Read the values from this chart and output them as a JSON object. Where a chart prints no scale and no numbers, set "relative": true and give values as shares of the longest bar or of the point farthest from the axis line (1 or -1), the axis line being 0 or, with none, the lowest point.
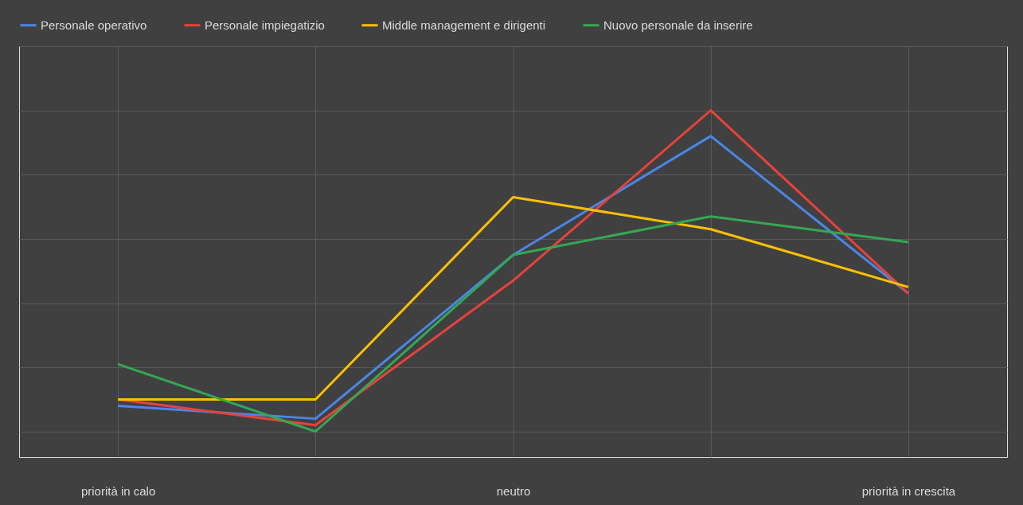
{
  "chart_data": {
    "type": "line",
    "relative": true,
    "grid": true,
    "legend": "top",
    "marker": "none",
    "line_style": "solid",
    "categories": [
      "priorità in calo",
      null,
      "neutro",
      null,
      "priorità in crescita"
    ],
    "series": [
      {
        "name": "Personale operativo",
        "color": "#4a86e8",
        "values": [
          0.08,
          0.04,
          0.55,
          0.92,
          0.43
        ]
      },
      {
        "name": "Personale impiegatizio",
        "color": "#e8423a",
        "values": [
          0.1,
          0.02,
          0.47,
          1,
          0.43
        ]
      },
      {
        "name": "Middle management e dirigenti",
        "color": "#ffc000",
        "values": [
          0.1,
          0.1,
          0.73,
          0.63,
          0.45
        ]
      },
      {
        "name": "Nuovo personale da inserire",
        "color": "#34a853",
        "values": [
          0.21,
          0,
          0.55,
          0.67,
          0.59
        ]
      }
    ]
  }
}
